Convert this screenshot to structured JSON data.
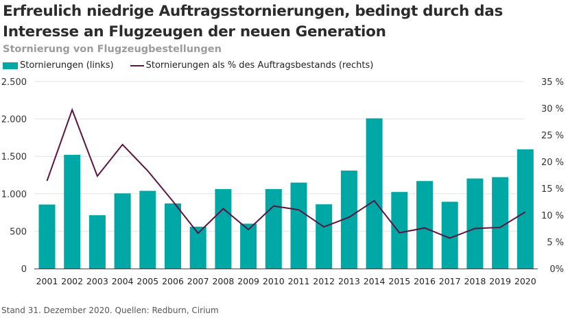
{
  "chart_data": {
    "type": "bar",
    "title": "Erfreulich niedrige Auftragsstornierungen, bedingt durch das Interesse an Flugzeugen der neuen Generation",
    "subtitle": "Stornierung von Flugzeugbestellungen",
    "categories": [
      "2001",
      "2002",
      "2003",
      "2004",
      "2005",
      "2006",
      "2007",
      "2008",
      "2009",
      "2010",
      "2011",
      "2012",
      "2013",
      "2014",
      "2015",
      "2016",
      "2017",
      "2018",
      "2019",
      "2020"
    ],
    "series": [
      {
        "name": "Stornierungen (links)",
        "type": "bar",
        "axis": "left",
        "color": "#00a8a5",
        "values": [
          856,
          1520,
          713,
          1005,
          1039,
          871,
          560,
          1063,
          600,
          1063,
          1149,
          859,
          1310,
          2008,
          1024,
          1170,
          893,
          1204,
          1222,
          1593
        ]
      },
      {
        "name": "Stornierungen als % des Auftragsbestands (rechts)",
        "type": "line",
        "axis": "right",
        "color": "#5a1440",
        "values": [
          16.4,
          29.7,
          17.3,
          23.2,
          18.3,
          12.6,
          6.6,
          11.2,
          7.3,
          11.7,
          11.0,
          7.8,
          9.6,
          12.7,
          6.7,
          7.6,
          5.7,
          7.5,
          7.7,
          10.6
        ]
      }
    ],
    "left_axis": {
      "ylim": [
        0,
        2500
      ],
      "ticks": [
        0,
        500,
        1000,
        1500,
        2000,
        2500
      ],
      "tick_labels": [
        "0",
        "500",
        "1.000",
        "1.500",
        "2.000",
        "2.500"
      ]
    },
    "right_axis": {
      "ylim": [
        0,
        35
      ],
      "ticks": [
        0,
        5,
        10,
        15,
        20,
        25,
        30,
        35
      ],
      "tick_labels": [
        "0%",
        "5 %",
        "10 %",
        "15 %",
        "20 %",
        "25 %",
        "30 %",
        "35 %"
      ]
    },
    "xlabel": "",
    "ylabel": "",
    "grid": true,
    "legend_placement": "top-left"
  },
  "header": {
    "title": "Erfreulich niedrige Auftragsstornierungen, bedingt durch das Interesse an Flugzeugen der neuen Generation",
    "subtitle": "Stornierung von Flugzeugbestellungen"
  },
  "legend": {
    "bar_label": "Stornierungen (links)",
    "line_label": "Stornierungen als % des Auftragsbestands (rechts)"
  },
  "footer": {
    "source": "Stand 31. Dezember 2020. Quellen: Redburn, Cirium"
  }
}
